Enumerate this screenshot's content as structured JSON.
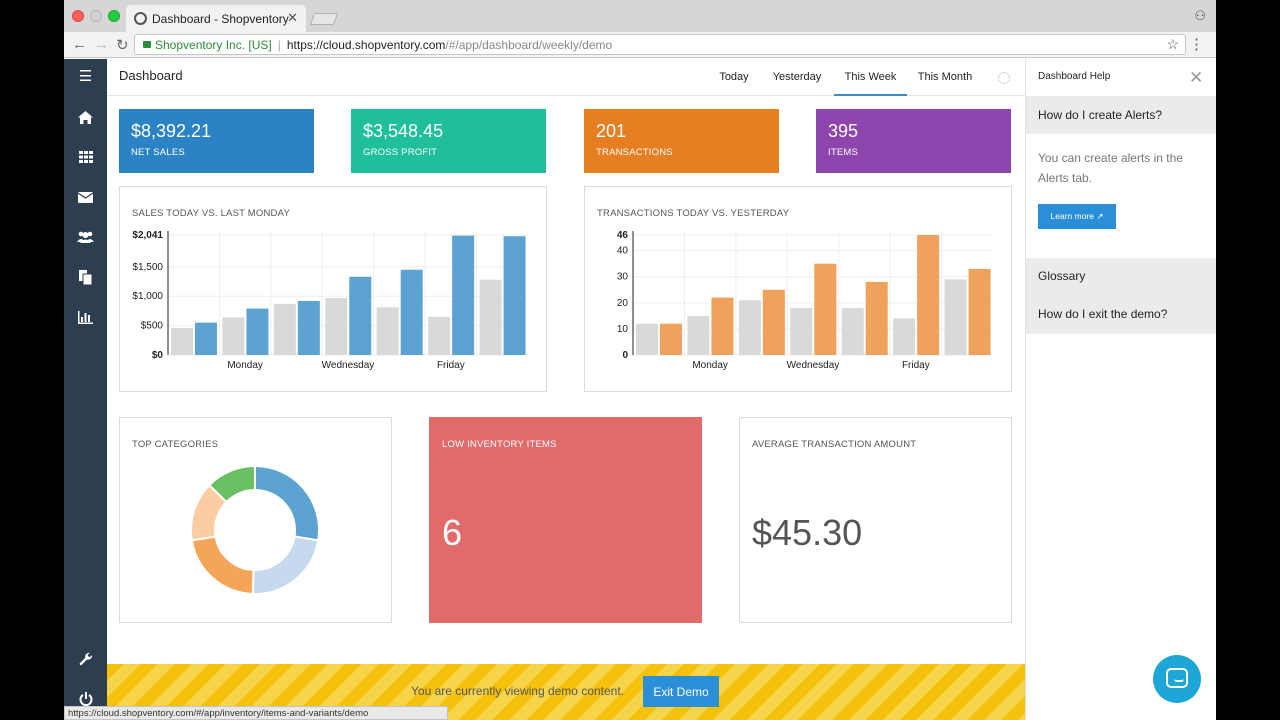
{
  "browser": {
    "tab_title": "Dashboard - Shopventory",
    "site_identity": "Shopventory Inc. [US]",
    "url_host": "https://cloud.shopventory.com",
    "url_path": "/#/app/dashboard/weekly/demo",
    "status_url": "https://cloud.shopventory.com/#/app/inventory/items-and-variants/demo"
  },
  "sidebar": {
    "items": [
      "menu-icon",
      "home-icon",
      "grid-icon",
      "envelope-icon",
      "users-icon",
      "documents-icon",
      "bar-chart-icon",
      "wrench-icon",
      "power-icon"
    ]
  },
  "header": {
    "title": "Dashboard",
    "tabs": [
      "Today",
      "Yesterday",
      "This Week",
      "This Month"
    ],
    "active_tab": "This Week"
  },
  "stats": [
    {
      "value": "$8,392.21",
      "label": "NET SALES",
      "color": "#2b82c4"
    },
    {
      "value": "$3,548.45",
      "label": "GROSS PROFIT",
      "color": "#1fbf9c"
    },
    {
      "value": "201",
      "label": "TRANSACTIONS",
      "color": "#e67e22"
    },
    {
      "value": "395",
      "label": "ITEMS",
      "color": "#8e44ad"
    }
  ],
  "cards": {
    "top_categories": "TOP CATEGORIES",
    "low_inventory": {
      "title": "LOW INVENTORY ITEMS",
      "value": "6"
    },
    "avg_transaction": {
      "title": "AVERAGE TRANSACTION AMOUNT",
      "value": "$45.30"
    }
  },
  "chart_data": [
    {
      "type": "bar",
      "title": "SALES TODAY VS. LAST MONDAY",
      "categories": [
        "",
        "Monday",
        "",
        "Wednesday",
        "",
        "Friday",
        ""
      ],
      "y_ticks": [
        "$0",
        "$500",
        "$1,000",
        "$1,500",
        "$2,041"
      ],
      "ylim": [
        0,
        2041
      ],
      "series": [
        {
          "values": [
            460,
            640,
            870,
            970,
            810,
            650,
            1280
          ],
          "color": "#d9d9d9"
        },
        {
          "values": [
            550,
            790,
            920,
            1330,
            1450,
            2030,
            2020
          ],
          "color": "#5ca3d2"
        }
      ]
    },
    {
      "type": "bar",
      "title": "TRANSACTIONS TODAY VS. YESTERDAY",
      "categories": [
        "",
        "Monday",
        "",
        "Wednesday",
        "",
        "Friday",
        ""
      ],
      "y_ticks": [
        "0",
        "10",
        "20",
        "30",
        "40",
        "46"
      ],
      "ylim": [
        0,
        46
      ],
      "series": [
        {
          "values": [
            12,
            15,
            21,
            18,
            18,
            14,
            29
          ],
          "color": "#d9d9d9"
        },
        {
          "values": [
            12,
            22,
            25,
            35,
            28,
            46,
            33
          ],
          "color": "#efa25b"
        }
      ]
    },
    {
      "type": "pie",
      "title": "TOP CATEGORIES",
      "donut": true,
      "values": [
        24,
        20,
        19,
        13,
        11
      ],
      "colors": [
        "#5ca3d2",
        "#c6d9ee",
        "#f5a55a",
        "#fbcda3",
        "#6abf63"
      ]
    }
  ],
  "banner": {
    "text": "You are currently viewing demo content.",
    "button": "Exit Demo"
  },
  "help": {
    "title": "Dashboard Help",
    "question": "How do I create Alerts?",
    "answer": "You can create alerts in the Alerts tab.",
    "learn_more": "Learn more ↗",
    "links": [
      "Glossary",
      "How do I exit the demo?"
    ]
  }
}
